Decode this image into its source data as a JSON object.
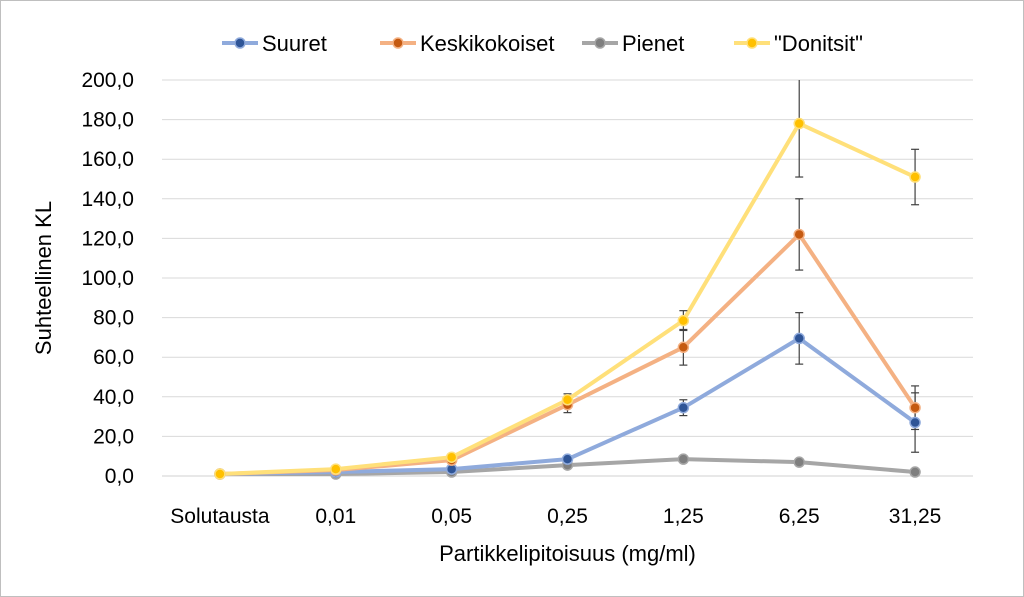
{
  "chart_data": {
    "type": "line",
    "title": "",
    "xlabel": "Partikkelipitoisuus (mg/ml)",
    "ylabel": "Suhteellinen KL",
    "categories": [
      "Solutausta",
      "0,01",
      "0,05",
      "0,25",
      "1,25",
      "6,25",
      "31,25"
    ],
    "ylim": [
      0,
      200
    ],
    "ytick_labels": [
      "0,0",
      "20,0",
      "40,0",
      "60,0",
      "80,0",
      "100,0",
      "120,0",
      "140,0",
      "160,0",
      "180,0",
      "200,0"
    ],
    "grid": "horizontal",
    "legend_position": "top",
    "series": [
      {
        "name": "Suuret",
        "line_color": "#8faadc",
        "marker_color": "#2f5597",
        "values": [
          1.0,
          2.0,
          3.5,
          8.5,
          34.5,
          69.5,
          27.0
        ],
        "error": [
          0,
          0,
          0,
          0,
          4.0,
          13.0,
          15.0
        ]
      },
      {
        "name": "Keskikokoiset",
        "line_color": "#f4b183",
        "marker_color": "#c55a11",
        "values": [
          1.0,
          3.0,
          8.0,
          36.0,
          65.0,
          122.0,
          34.5
        ],
        "error": [
          0,
          0,
          0,
          4.0,
          9.0,
          18.0,
          11.0
        ]
      },
      {
        "name": "Pienet",
        "line_color": "#a6a6a6",
        "marker_color": "#7f7f7f",
        "values": [
          1.0,
          1.0,
          2.0,
          5.5,
          8.5,
          7.0,
          2.0
        ],
        "error": [
          0,
          0,
          0,
          0,
          0,
          0,
          0
        ]
      },
      {
        "name": "\"Donitsit\"",
        "line_color": "#ffe07a",
        "marker_color": "#ffc000",
        "values": [
          1.0,
          3.5,
          9.5,
          38.5,
          78.5,
          178.0,
          151.0
        ],
        "error": [
          0,
          0,
          0,
          3.0,
          5.0,
          27.0,
          14.0
        ]
      }
    ]
  }
}
